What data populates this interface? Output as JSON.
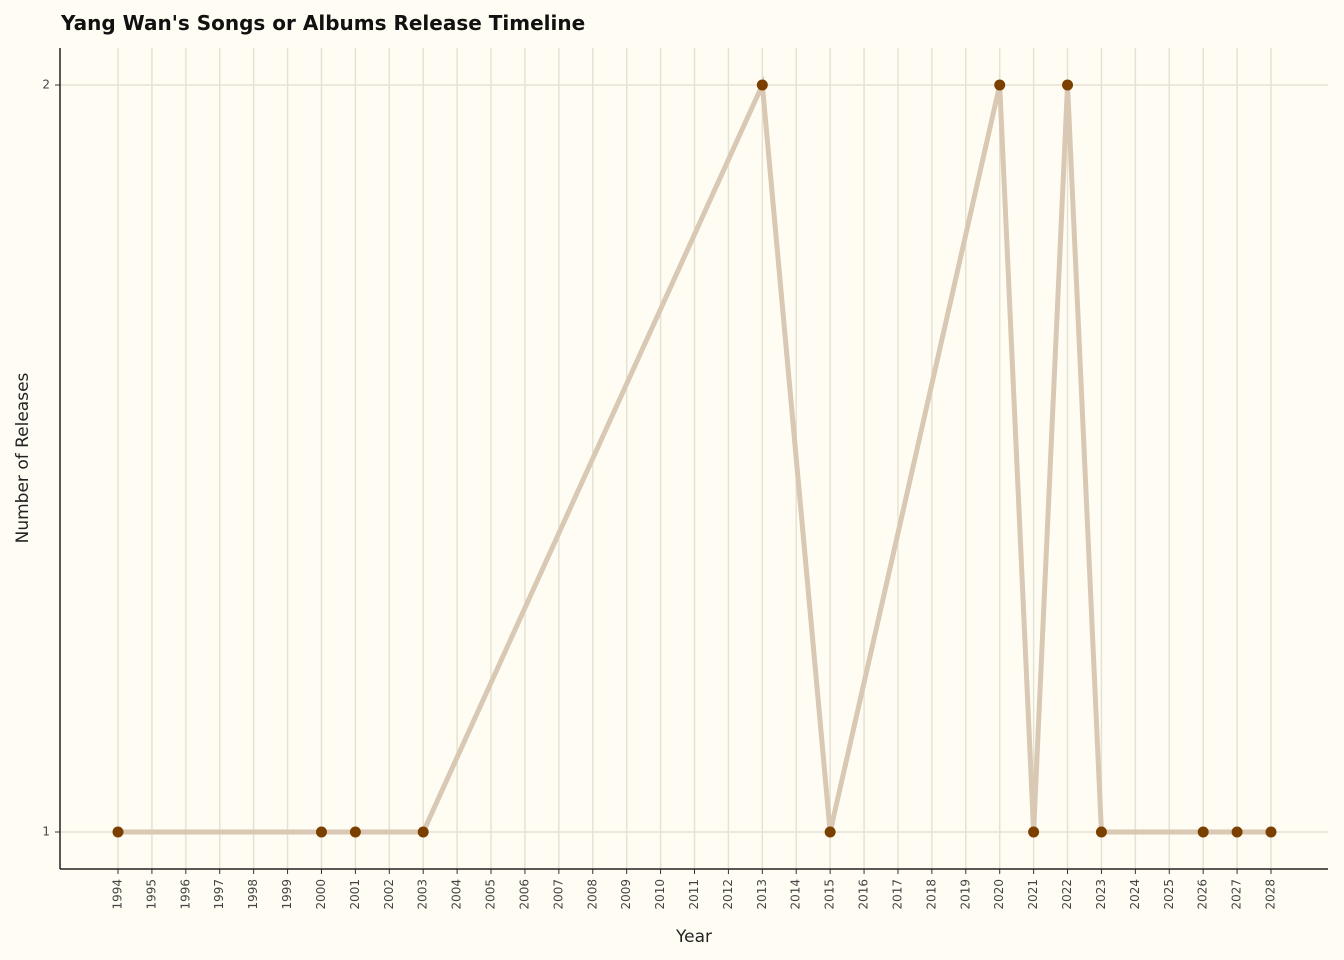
{
  "chart_data": {
    "type": "line",
    "title": "Yang Wan's Songs or Albums Release Timeline",
    "xlabel": "Year",
    "ylabel": "Number of Releases",
    "x": [
      1994,
      2000,
      2001,
      2003,
      2013,
      2015,
      2020,
      2021,
      2022,
      2023,
      2026,
      2027,
      2028
    ],
    "series": [
      {
        "values": [
          1,
          1,
          1,
          1,
          2,
          1,
          2,
          1,
          2,
          1,
          1,
          1,
          1
        ]
      }
    ],
    "x_ticks": [
      "1994",
      "1995",
      "1996",
      "1997",
      "1998",
      "1999",
      "2000",
      "2001",
      "2002",
      "2003",
      "2004",
      "2005",
      "2006",
      "2007",
      "2008",
      "2009",
      "2010",
      "2011",
      "2012",
      "2013",
      "2014",
      "2015",
      "2016",
      "2017",
      "2018",
      "2019",
      "2020",
      "2021",
      "2022",
      "2023",
      "2024",
      "2025",
      "2026",
      "2027",
      "2028"
    ],
    "y_ticks": [
      "1",
      "2"
    ],
    "xlim": [
      1994,
      2028
    ],
    "ylim": [
      1,
      2
    ],
    "grid": true,
    "colors": {
      "background": "#fffdf3",
      "grid": "#e6e2d3",
      "line": "#d9c8b3",
      "marker": "#7b3f00"
    }
  }
}
